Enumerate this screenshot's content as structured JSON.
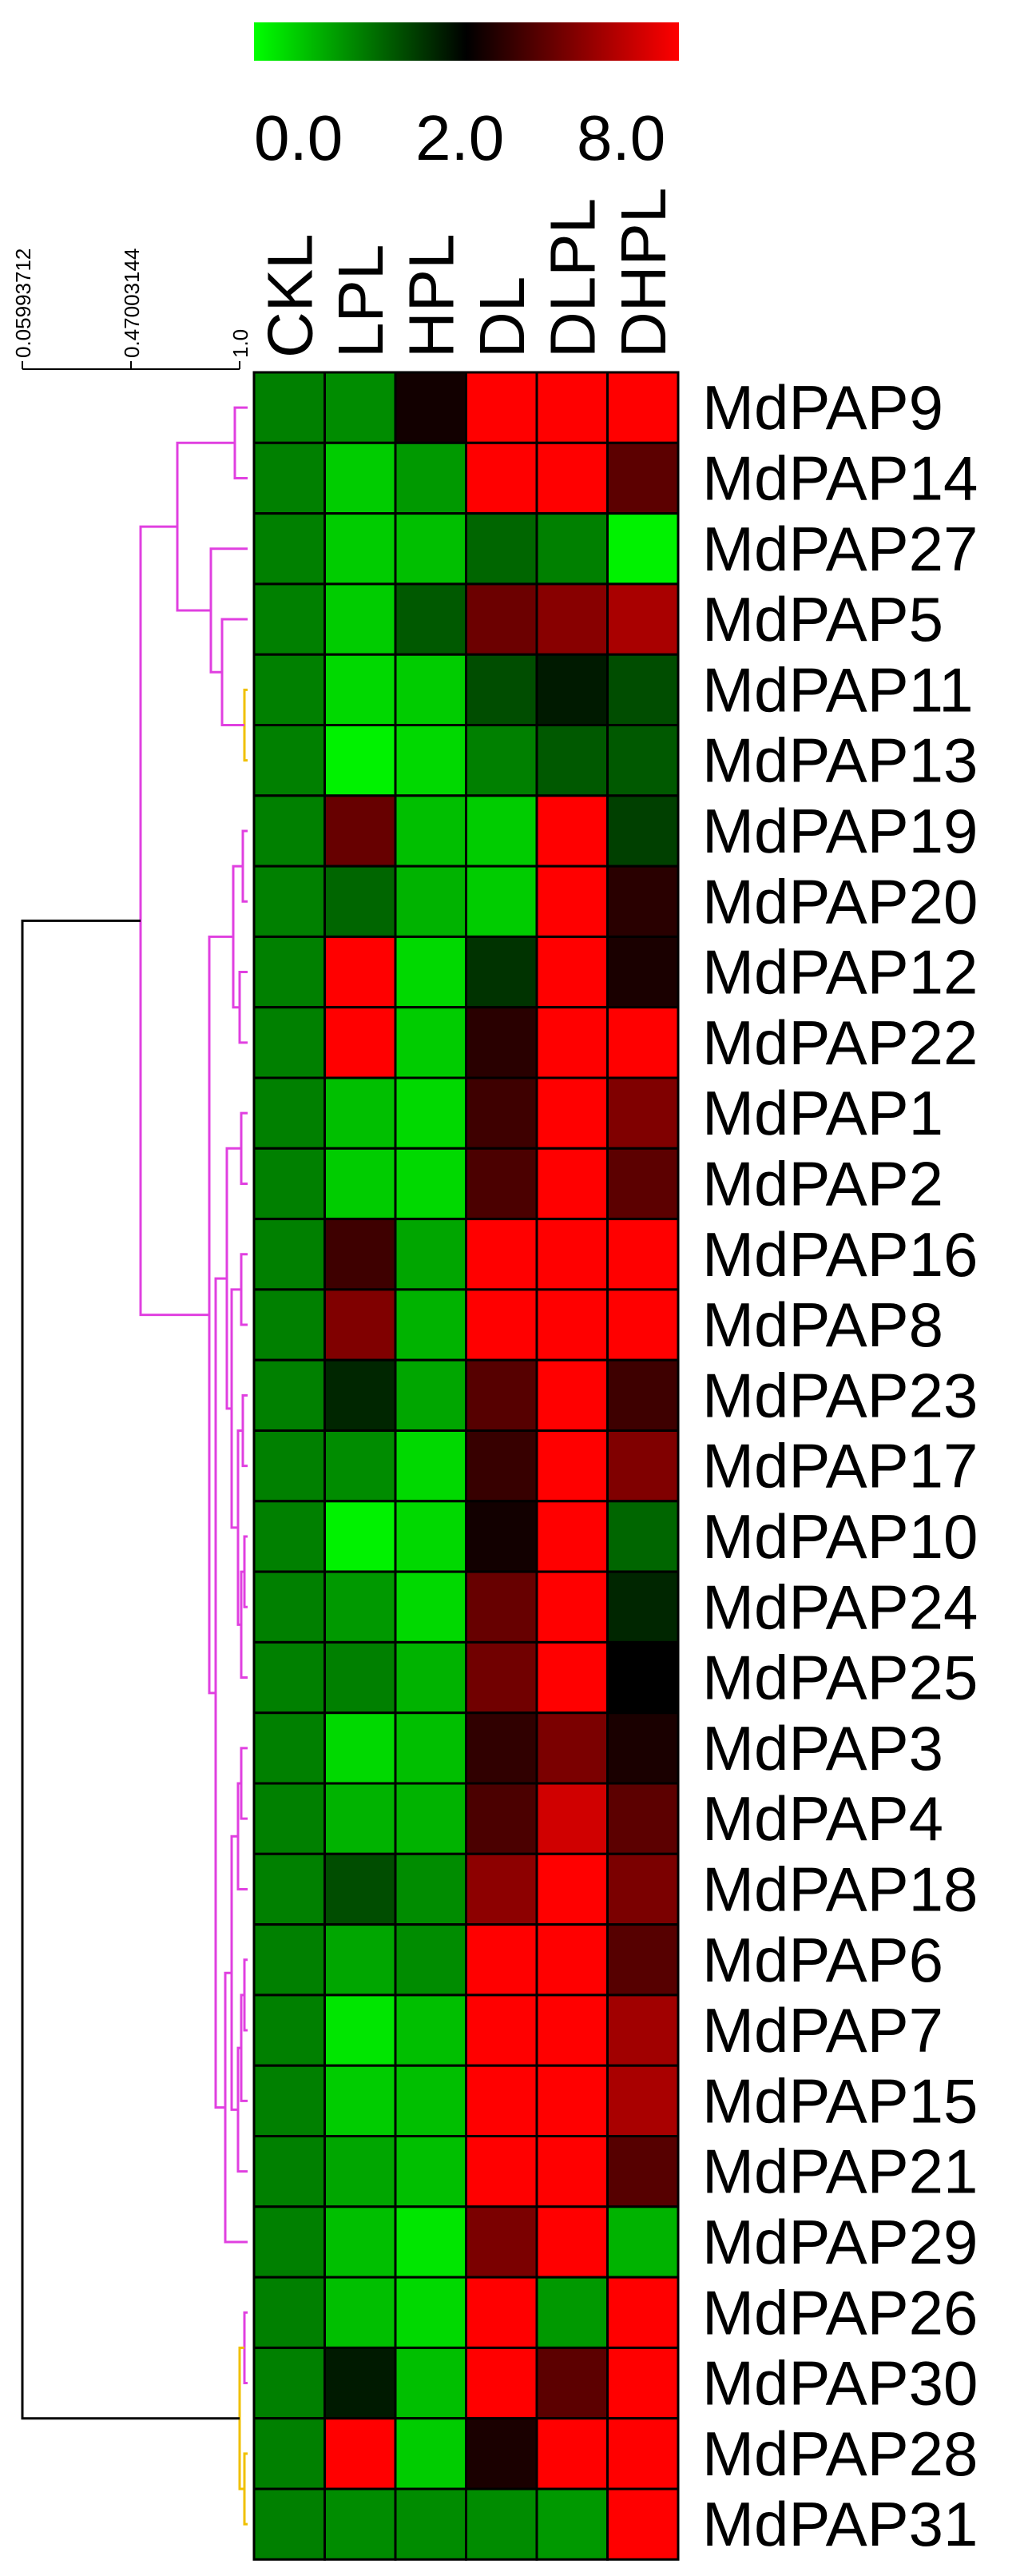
{
  "chart_data": {
    "type": "heatmap",
    "title": "",
    "xlabel": "",
    "ylabel": "",
    "color_scale": {
      "stops": [
        "#00ff00",
        "#000000",
        "#ff0000"
      ],
      "tick_labels": [
        "0.0",
        "2.0",
        "8.0"
      ],
      "tick_values": [
        0.0,
        2.0,
        8.0
      ]
    },
    "columns": [
      "CKL",
      "LPL",
      "HPL",
      "DL",
      "DLPL",
      "DHPL"
    ],
    "rows": [
      "MdPAP9",
      "MdPAP14",
      "MdPAP27",
      "MdPAP5",
      "MdPAP11",
      "MdPAP13",
      "MdPAP19",
      "MdPAP20",
      "MdPAP12",
      "MdPAP22",
      "MdPAP1",
      "MdPAP2",
      "MdPAP16",
      "MdPAP8",
      "MdPAP23",
      "MdPAP17",
      "MdPAP10",
      "MdPAP24",
      "MdPAP25",
      "MdPAP3",
      "MdPAP4",
      "MdPAP18",
      "MdPAP6",
      "MdPAP7",
      "MdPAP15",
      "MdPAP21",
      "MdPAP29",
      "MdPAP26",
      "MdPAP30",
      "MdPAP28",
      "MdPAP31"
    ],
    "values": [
      [
        1.0,
        0.9,
        2.2,
        8.0,
        8.0,
        8.0
      ],
      [
        1.0,
        0.4,
        0.8,
        8.0,
        8.0,
        3.3
      ],
      [
        1.0,
        0.4,
        0.5,
        1.2,
        1.0,
        0.1
      ],
      [
        1.0,
        0.4,
        1.3,
        3.6,
        4.2,
        5.0
      ],
      [
        1.0,
        0.3,
        0.4,
        1.4,
        1.8,
        1.4
      ],
      [
        1.0,
        0.1,
        0.3,
        1.0,
        1.3,
        1.3
      ],
      [
        1.0,
        3.5,
        0.5,
        0.4,
        8.0,
        1.5
      ],
      [
        1.0,
        1.2,
        0.6,
        0.4,
        8.0,
        2.5
      ],
      [
        1.0,
        8.0,
        0.3,
        1.6,
        8.0,
        2.3
      ],
      [
        1.0,
        8.0,
        0.4,
        2.5,
        8.0,
        8.0
      ],
      [
        1.0,
        0.5,
        0.3,
        2.8,
        8.0,
        4.0
      ],
      [
        1.0,
        0.4,
        0.3,
        3.0,
        8.0,
        3.3
      ],
      [
        1.0,
        2.8,
        0.7,
        8.0,
        8.0,
        8.0
      ],
      [
        1.0,
        4.0,
        0.6,
        8.0,
        8.0,
        8.0
      ],
      [
        1.0,
        1.7,
        0.7,
        3.2,
        8.0,
        2.8
      ],
      [
        1.0,
        0.9,
        0.3,
        2.7,
        8.0,
        4.0
      ],
      [
        1.0,
        0.1,
        0.3,
        2.2,
        8.0,
        1.2
      ],
      [
        1.0,
        0.8,
        0.3,
        3.5,
        8.0,
        1.7
      ],
      [
        1.0,
        1.0,
        0.6,
        3.7,
        8.0,
        2.0
      ],
      [
        1.0,
        0.3,
        0.5,
        2.6,
        3.9,
        2.3
      ],
      [
        1.0,
        0.6,
        0.6,
        3.0,
        6.2,
        3.3
      ],
      [
        1.0,
        1.4,
        0.9,
        4.3,
        8.0,
        3.9
      ],
      [
        1.0,
        0.7,
        0.9,
        8.0,
        8.0,
        3.2
      ],
      [
        1.0,
        0.2,
        0.5,
        8.0,
        8.0,
        4.8
      ],
      [
        1.0,
        0.4,
        0.5,
        8.0,
        8.0,
        5.0
      ],
      [
        1.0,
        0.7,
        0.5,
        8.0,
        8.0,
        3.2
      ],
      [
        1.0,
        0.5,
        0.2,
        3.9,
        8.0,
        0.6
      ],
      [
        1.0,
        0.5,
        0.3,
        8.0,
        0.8,
        8.0
      ],
      [
        1.0,
        1.8,
        0.5,
        8.0,
        3.3,
        8.0
      ],
      [
        1.0,
        8.0,
        0.4,
        2.3,
        8.0,
        8.0
      ],
      [
        1.0,
        0.9,
        0.9,
        0.9,
        0.8,
        8.0
      ]
    ],
    "tree_scale": {
      "tick_labels": [
        "0.05993712",
        "0.47003144",
        "1.0"
      ]
    },
    "tree_colors": {
      "major_cluster": "#e040e0",
      "minor_cluster": "#f0c000",
      "root": "#000000"
    }
  }
}
